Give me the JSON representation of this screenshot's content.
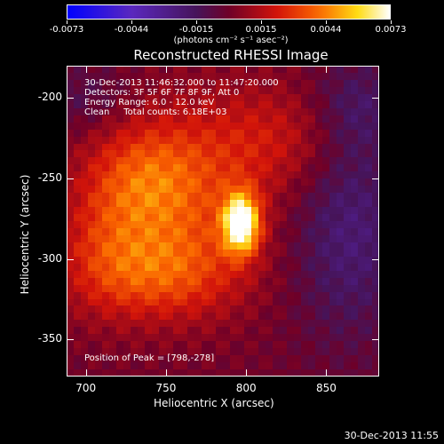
{
  "colorbar": {
    "labels": [
      "-0.0073",
      "-0.0044",
      "-0.0015",
      "0.0015",
      "0.0044",
      "0.0073"
    ],
    "units": "(photons cm⁻² s⁻¹ asec⁻²)"
  },
  "title": "Reconstructed RHESSI Image",
  "annotations": {
    "time": "30-Dec-2013 11:46:32.000 to 11:47:20.000",
    "detectors": "Detectors: 3F 5F 6F 7F 8F 9F, Att 0",
    "energy": "Energy Range: 6.0 - 12.0 keV",
    "clean": "Clean     Total counts: 6.18E+03",
    "peak": "Position of Peak = [798,-278]"
  },
  "axes": {
    "xlabel": "Heliocentric X (arcsec)",
    "ylabel": "Heliocentric Y (arcsec)",
    "xticks": [
      "700",
      "750",
      "800",
      "850"
    ],
    "yticks": [
      "-200",
      "-250",
      "-300",
      "-350"
    ]
  },
  "footer": "30-Dec-2013 11:55",
  "chart_data": {
    "type": "heatmap",
    "title": "Reconstructed RHESSI Image",
    "xlabel": "Heliocentric X (arcsec)",
    "ylabel": "Heliocentric Y (arcsec)",
    "xlim": [
      688,
      883
    ],
    "ylim": [
      -373,
      -180
    ],
    "zlim": [
      -0.0073,
      0.0073
    ],
    "colormap": "blue-purple-red-yellow-white",
    "peak": {
      "x": 798,
      "y": -278,
      "value": 0.0073
    },
    "sources": [
      {
        "x": 797,
        "y": -278,
        "amp": 1.0,
        "sx": 8,
        "sy": 13
      },
      {
        "x": 760,
        "y": -265,
        "amp": 0.35,
        "sx": 35,
        "sy": 40
      },
      {
        "x": 735,
        "y": -250,
        "amp": 0.3,
        "sx": 25,
        "sy": 25
      },
      {
        "x": 745,
        "y": -310,
        "amp": 0.35,
        "sx": 35,
        "sy": 20
      },
      {
        "x": 820,
        "y": -225,
        "amp": 0.25,
        "sx": 35,
        "sy": 25
      },
      {
        "x": 710,
        "y": -290,
        "amp": 0.2,
        "sx": 20,
        "sy": 30
      }
    ],
    "negative_regions": [
      {
        "x": 865,
        "y": -280,
        "amp": -0.3,
        "sx": 25,
        "sy": 50
      },
      {
        "x": 870,
        "y": -205,
        "amp": -0.2,
        "sx": 20,
        "sy": 20
      },
      {
        "x": 700,
        "y": -200,
        "amp": -0.15,
        "sx": 20,
        "sy": 15
      }
    ]
  }
}
